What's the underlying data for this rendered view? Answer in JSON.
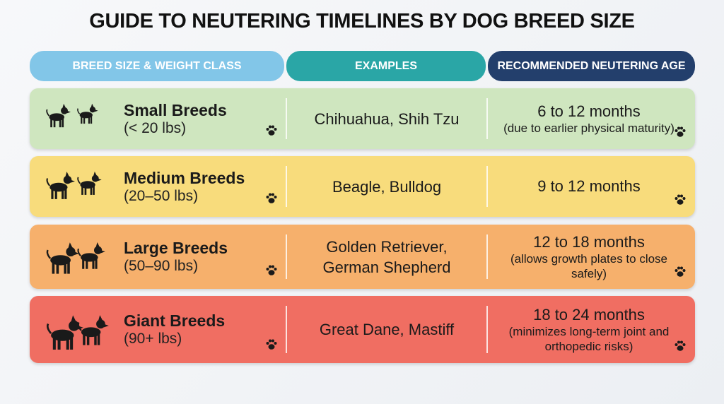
{
  "title": "GUIDE TO NEUTERING TIMELINES BY DOG BREED SIZE",
  "header": [
    "BREED SIZE & WEIGHT CLASS",
    "EXAMPLES",
    "RECOMMENDED NEUTERING AGE"
  ],
  "rows": [
    {
      "name": "Small Breeds",
      "weight": "(< 20 lbs)",
      "examples": "Chihuahua, Shih Tzu",
      "age": "6 to 12 months",
      "note": "(due to earlier physical maturity)"
    },
    {
      "name": "Medium Breeds",
      "weight": "(20–50 lbs)",
      "examples": "Beagle, Bulldog",
      "age": "9 to 12 months"
    },
    {
      "name": "Large Breeds",
      "weight": "(50–90 lbs)",
      "examples": "Golden Retriever, German Shepherd",
      "age": "12 to 18 months",
      "note": "(allows growth plates to close safely)"
    },
    {
      "name": "Giant Breeds",
      "weight": "(90+ lbs)",
      "examples": "Great Dane, Mastiff",
      "age": "18 to 24 months",
      "note": "(minimizes long-term joint and orthopedic risks)"
    }
  ]
}
